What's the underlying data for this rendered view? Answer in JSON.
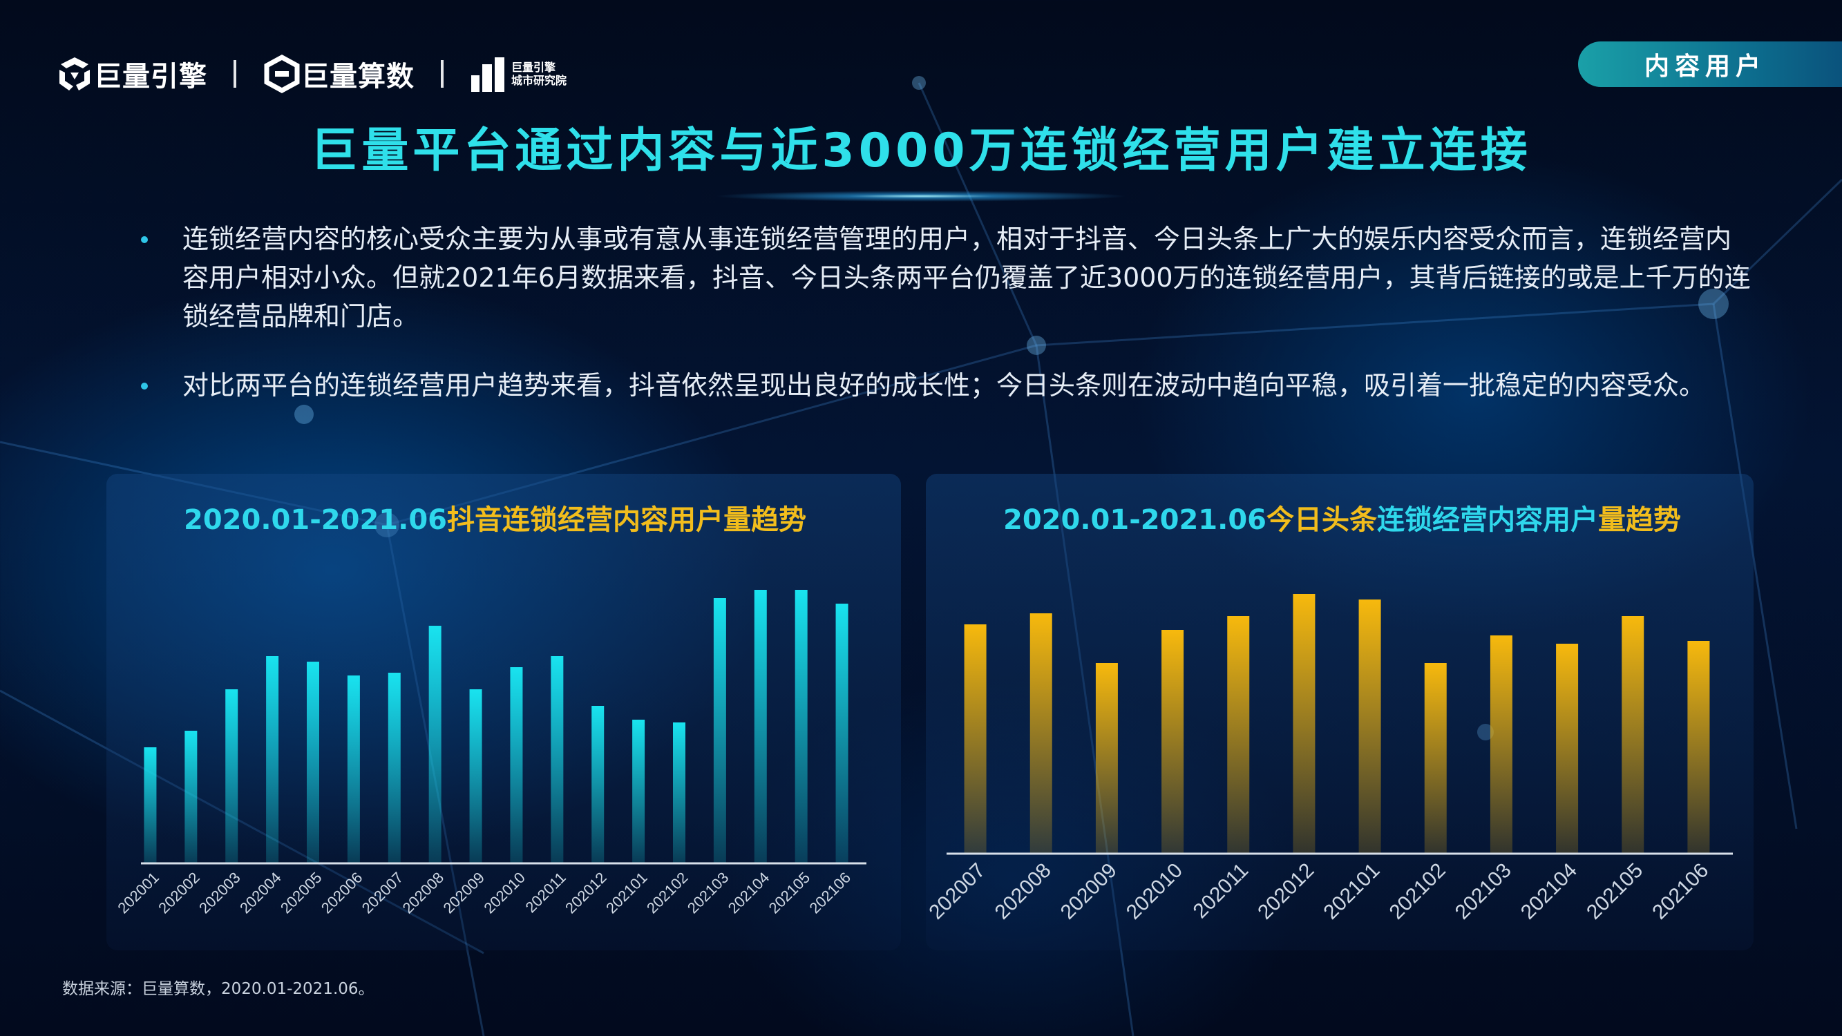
{
  "logos": {
    "brand1": "巨量引擎",
    "brand2": "巨量算数",
    "brand3_line1": "巨量引擎",
    "brand3_line2": "城市研究院"
  },
  "badge": "内容用户",
  "title": "巨量平台通过内容与近3000万连锁经营用户建立连接",
  "bullets": [
    "连锁经营内容的核心受众主要为从事或有意从事连锁经营管理的用户，相对于抖音、今日头条上广大的娱乐内容受众而言，连锁经营内容用户相对小众。但就2021年6月数据来看，抖音、今日头条两平台仍覆盖了近3000万的连锁经营用户，其背后链接的或是上千万的连锁经营品牌和门店。",
    "对比两平台的连锁经营用户趋势来看，抖音依然呈现出良好的成长性；今日头条则在波动中趋向平稳，吸引着一批稳定的内容受众。"
  ],
  "chart_titles": {
    "left": {
      "date": "2020.01-2021.06",
      "brand": "抖音",
      "rest": "连锁经营内容用户量趋势"
    },
    "right": {
      "date": "2020.01-2021.06",
      "brand": "今日头条",
      "rest": "连锁经营内容用户",
      "tail": "量趋势"
    }
  },
  "source": "数据来源：巨量算数，2020.01-2021.06。",
  "colors": {
    "cyan": "#19e3ef",
    "gold": "#f7b90d",
    "title": "#2fe0ea"
  },
  "chart_data": [
    {
      "type": "bar",
      "title": "2020.01-2021.06抖音连锁经营内容用户量趋势",
      "categories": [
        "202001",
        "202002",
        "202003",
        "202004",
        "202005",
        "202006",
        "202007",
        "202008",
        "202009",
        "202010",
        "202011",
        "202012",
        "202101",
        "202102",
        "202103",
        "202104",
        "202105",
        "202106"
      ],
      "values": [
        42,
        48,
        63,
        75,
        73,
        68,
        69,
        86,
        63,
        71,
        75,
        57,
        52,
        51,
        96,
        99,
        99,
        94
      ],
      "ylim": [
        0,
        100
      ],
      "grid": false,
      "legend": "none",
      "color": "#19e3ef"
    },
    {
      "type": "bar",
      "title": "2020.01-2021.06今日头条连锁经营内容用户量趋势",
      "categories": [
        "202007",
        "202008",
        "202009",
        "202010",
        "202011",
        "202012",
        "202101",
        "202102",
        "202103",
        "202104",
        "202105",
        "202106"
      ],
      "values": [
        83,
        87,
        69,
        81,
        86,
        94,
        92,
        69,
        79,
        76,
        86,
        77
      ],
      "ylim": [
        0,
        100
      ],
      "grid": false,
      "legend": "none",
      "color": "#f7b90d"
    }
  ]
}
